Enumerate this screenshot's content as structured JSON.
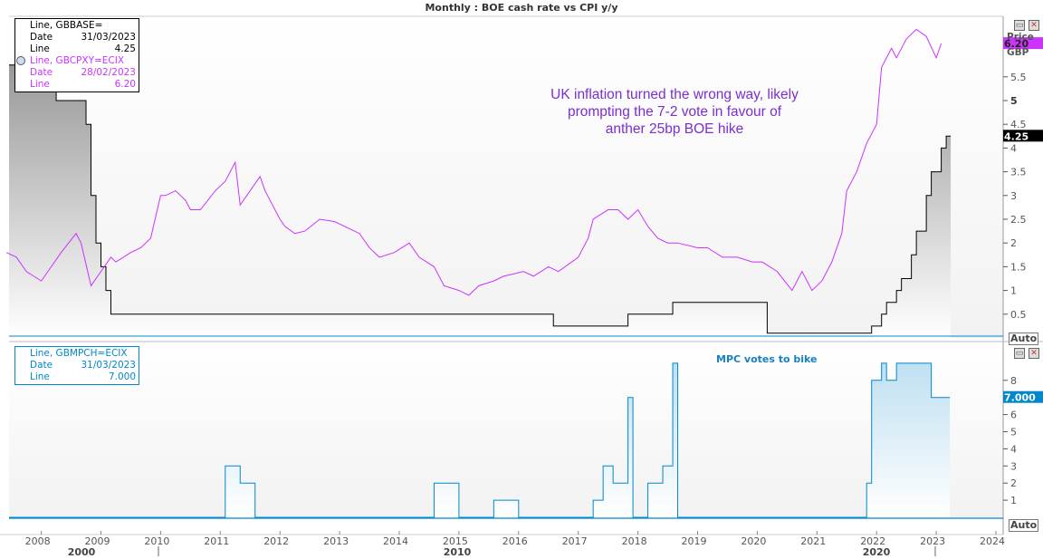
{
  "title": "Monthly : BOE cash rate vs CPI y/y",
  "upper_legend": {
    "series1": {
      "name": "Line, GBBASE=",
      "date_label": "Date",
      "date": "31/03/2023",
      "value_label": "Line",
      "value": "4.25"
    },
    "series2": {
      "name": "Line, GBCPXY=ECIX",
      "date_label": "Date",
      "date": "28/02/2023",
      "value_label": "Line",
      "value": "6.20"
    }
  },
  "lower_legend": {
    "name": "Line, GBMPCH=ECIX",
    "date_label": "Date",
    "date": "31/03/2023",
    "value_label": "Line",
    "value": "7.000"
  },
  "axis_unit_top": "Price",
  "axis_currency": "GBP",
  "auto_label": "Auto",
  "annotation_upper": [
    "UK inflation turned the wrong way, likely",
    "prompting the 7-2 vote in favour of",
    "anther 25bp BOE hike"
  ],
  "annotation_lower": "MPC votes to bike",
  "decade_labels": [
    "2000",
    "2010",
    "2020"
  ],
  "colors": {
    "boe": "#000000",
    "cpi": "#CC33FF",
    "mpc": "#0088CC",
    "annotation": "#7B2FD0",
    "mpc_note": "#1A7FC0"
  },
  "chart_data": [
    {
      "type": "line",
      "x_ticks": [
        "2008",
        "2009",
        "2010",
        "2011",
        "2012",
        "2013",
        "2014",
        "2015",
        "2016",
        "2017",
        "2018",
        "2019",
        "2020",
        "2021",
        "2022",
        "2023",
        "2024"
      ],
      "y_ticks": [
        "0.5",
        "1",
        "1.5",
        "2",
        "2.5",
        "3",
        "3.5",
        "4",
        "4.5",
        "5",
        "5.5"
      ],
      "ylim": [
        0,
        6.9
      ],
      "xlim": [
        "2007-06",
        "2024-03"
      ],
      "last_value_labels": [
        "6.20",
        "4.25"
      ],
      "series": [
        {
          "name": "Line, GBBASE=",
          "step": true,
          "points": [
            [
              "2007-06",
              5.75
            ],
            [
              "2007-12",
              5.5
            ],
            [
              "2008-02",
              5.25
            ],
            [
              "2008-04",
              5.0
            ],
            [
              "2008-10",
              4.5
            ],
            [
              "2008-11",
              3.0
            ],
            [
              "2008-12",
              2.0
            ],
            [
              "2009-01",
              1.5
            ],
            [
              "2009-02",
              1.0
            ],
            [
              "2009-03",
              0.5
            ],
            [
              "2016-08",
              0.25
            ],
            [
              "2017-11",
              0.5
            ],
            [
              "2018-08",
              0.75
            ],
            [
              "2020-03",
              0.1
            ],
            [
              "2021-12",
              0.25
            ],
            [
              "2022-02",
              0.5
            ],
            [
              "2022-03",
              0.75
            ],
            [
              "2022-05",
              1.0
            ],
            [
              "2022-06",
              1.25
            ],
            [
              "2022-08",
              1.75
            ],
            [
              "2022-09",
              2.25
            ],
            [
              "2022-11",
              3.0
            ],
            [
              "2022-12",
              3.5
            ],
            [
              "2023-02",
              4.0
            ],
            [
              "2023-03",
              4.25
            ]
          ]
        },
        {
          "name": "Line, GBCPXY=ECIX",
          "step": false,
          "points": [
            [
              "2007-06",
              1.8
            ],
            [
              "2007-08",
              1.7
            ],
            [
              "2007-10",
              1.4
            ],
            [
              "2008-01",
              1.2
            ],
            [
              "2008-03",
              1.5
            ],
            [
              "2008-05",
              1.8
            ],
            [
              "2008-08",
              2.2
            ],
            [
              "2008-09",
              2.0
            ],
            [
              "2008-11",
              1.1
            ],
            [
              "2009-01",
              1.4
            ],
            [
              "2009-03",
              1.7
            ],
            [
              "2009-04",
              1.6
            ],
            [
              "2009-07",
              1.8
            ],
            [
              "2009-09",
              1.9
            ],
            [
              "2009-11",
              2.1
            ],
            [
              "2010-01",
              3.0
            ],
            [
              "2010-02",
              3.0
            ],
            [
              "2010-04",
              3.1
            ],
            [
              "2010-06",
              2.9
            ],
            [
              "2010-07",
              2.7
            ],
            [
              "2010-09",
              2.7
            ],
            [
              "2010-12",
              3.1
            ],
            [
              "2011-02",
              3.3
            ],
            [
              "2011-04",
              3.7
            ],
            [
              "2011-05",
              2.8
            ],
            [
              "2011-07",
              3.1
            ],
            [
              "2011-09",
              3.4
            ],
            [
              "2011-10",
              3.1
            ],
            [
              "2012-01",
              2.5
            ],
            [
              "2012-02",
              2.35
            ],
            [
              "2012-04",
              2.2
            ],
            [
              "2012-06",
              2.25
            ],
            [
              "2012-09",
              2.5
            ],
            [
              "2012-12",
              2.45
            ],
            [
              "2013-02",
              2.35
            ],
            [
              "2013-05",
              2.2
            ],
            [
              "2013-07",
              1.9
            ],
            [
              "2013-09",
              1.7
            ],
            [
              "2013-12",
              1.8
            ],
            [
              "2014-03",
              2.0
            ],
            [
              "2014-05",
              1.7
            ],
            [
              "2014-08",
              1.5
            ],
            [
              "2014-10",
              1.1
            ],
            [
              "2015-01",
              1.0
            ],
            [
              "2015-03",
              0.9
            ],
            [
              "2015-05",
              1.1
            ],
            [
              "2015-08",
              1.2
            ],
            [
              "2015-10",
              1.3
            ],
            [
              "2016-02",
              1.4
            ],
            [
              "2016-04",
              1.3
            ],
            [
              "2016-07",
              1.5
            ],
            [
              "2016-09",
              1.4
            ],
            [
              "2017-01",
              1.7
            ],
            [
              "2017-03",
              2.1
            ],
            [
              "2017-04",
              2.5
            ],
            [
              "2017-07",
              2.7
            ],
            [
              "2017-09",
              2.7
            ],
            [
              "2017-11",
              2.5
            ],
            [
              "2018-01",
              2.7
            ],
            [
              "2018-03",
              2.35
            ],
            [
              "2018-05",
              2.1
            ],
            [
              "2018-07",
              2.0
            ],
            [
              "2018-09",
              2.0
            ],
            [
              "2019-01",
              1.9
            ],
            [
              "2019-03",
              1.9
            ],
            [
              "2019-06",
              1.7
            ],
            [
              "2019-09",
              1.7
            ],
            [
              "2019-12",
              1.6
            ],
            [
              "2020-02",
              1.6
            ],
            [
              "2020-05",
              1.4
            ],
            [
              "2020-08",
              1.0
            ],
            [
              "2020-10",
              1.4
            ],
            [
              "2020-12",
              1.0
            ],
            [
              "2021-02",
              1.2
            ],
            [
              "2021-04",
              1.6
            ],
            [
              "2021-06",
              2.2
            ],
            [
              "2021-07",
              3.1
            ],
            [
              "2021-09",
              3.5
            ],
            [
              "2021-11",
              4.1
            ],
            [
              "2022-01",
              4.5
            ],
            [
              "2022-02",
              5.7
            ],
            [
              "2022-04",
              6.1
            ],
            [
              "2022-05",
              5.9
            ],
            [
              "2022-07",
              6.3
            ],
            [
              "2022-09",
              6.5
            ],
            [
              "2022-11",
              6.35
            ],
            [
              "2023-01",
              5.9
            ],
            [
              "2023-02",
              6.2
            ]
          ]
        }
      ]
    },
    {
      "type": "area",
      "y_ticks": [
        "1",
        "2",
        "3",
        "4",
        "5",
        "6",
        "8"
      ],
      "ylim": [
        0,
        9.9
      ],
      "last_value_labels": [
        "7.000"
      ],
      "series": [
        {
          "name": "Line, GBMPCH=ECIX",
          "step": true,
          "points": [
            [
              "2007-06",
              0
            ],
            [
              "2011-02",
              3
            ],
            [
              "2011-05",
              2
            ],
            [
              "2011-08",
              0
            ],
            [
              "2014-08",
              2
            ],
            [
              "2015-01",
              0
            ],
            [
              "2015-08",
              1
            ],
            [
              "2016-01",
              0
            ],
            [
              "2017-04",
              1
            ],
            [
              "2017-06",
              3
            ],
            [
              "2017-08",
              2
            ],
            [
              "2017-11",
              7
            ],
            [
              "2017-12",
              0
            ],
            [
              "2018-03",
              2
            ],
            [
              "2018-06",
              3
            ],
            [
              "2018-08",
              9
            ],
            [
              "2018-09",
              0
            ],
            [
              "2021-11",
              2
            ],
            [
              "2021-12",
              8
            ],
            [
              "2022-02",
              9
            ],
            [
              "2022-03",
              8
            ],
            [
              "2022-05",
              9
            ],
            [
              "2022-12",
              7
            ],
            [
              "2023-03",
              7
            ]
          ]
        }
      ]
    }
  ]
}
